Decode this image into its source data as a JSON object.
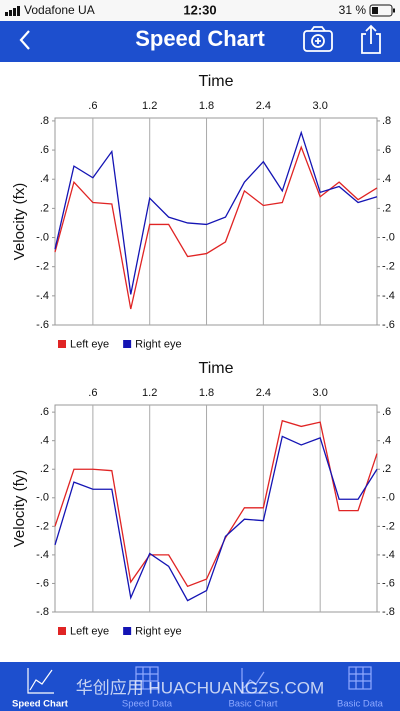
{
  "status_bar": {
    "carrier": "Vodafone UA",
    "time": "12:30",
    "battery": "31 %"
  },
  "nav": {
    "title": "Speed Chart"
  },
  "chart_data": [
    {
      "type": "line",
      "title": "Time",
      "y_label": "Velocity (fx)",
      "x": [
        0.2,
        0.4,
        0.6,
        0.8,
        1.0,
        1.2,
        1.4,
        1.6,
        1.8,
        2.0,
        2.2,
        2.4,
        2.6,
        2.8,
        3.0,
        3.2,
        3.4,
        3.6
      ],
      "series": [
        {
          "name": "Left eye",
          "color": "#e02424",
          "values": [
            -0.1,
            0.38,
            0.24,
            0.23,
            -0.49,
            0.09,
            0.09,
            -0.13,
            -0.11,
            -0.03,
            0.32,
            0.22,
            0.24,
            0.62,
            0.28,
            0.38,
            0.26,
            0.34
          ]
        },
        {
          "name": "Right eye",
          "color": "#1414b4",
          "values": [
            -0.08,
            0.49,
            0.41,
            0.59,
            -0.39,
            0.27,
            0.14,
            0.1,
            0.09,
            0.14,
            0.38,
            0.52,
            0.32,
            0.72,
            0.31,
            0.35,
            0.24,
            0.28
          ]
        }
      ],
      "xlim": [
        0.2,
        3.6
      ],
      "ylim": [
        -0.6,
        0.82
      ],
      "xticks": [
        {
          "value": 0.6,
          "label": ".6"
        },
        1.2,
        1.8,
        2.4,
        {
          "value": 3.0,
          "label": "3.0"
        }
      ],
      "yticks": [
        {
          "value": 0.8,
          "label": ".8"
        },
        {
          "value": 0.6,
          "label": ".6"
        },
        {
          "value": 0.4,
          "label": ".4"
        },
        {
          "value": 0.2,
          "label": ".2"
        },
        {
          "value": 0,
          "label": "-.0"
        },
        {
          "value": -0.2,
          "label": "-.2"
        },
        {
          "value": -0.4,
          "label": "-.4"
        },
        {
          "value": -0.6,
          "label": "-.6"
        }
      ],
      "grid": "x"
    },
    {
      "type": "line",
      "title": "Time",
      "y_label": "Velocity (fy)",
      "x": [
        0.2,
        0.4,
        0.6,
        0.8,
        1.0,
        1.2,
        1.4,
        1.6,
        1.8,
        2.0,
        2.2,
        2.4,
        2.6,
        2.8,
        3.0,
        3.2,
        3.4,
        3.6
      ],
      "series": [
        {
          "name": "Left eye",
          "color": "#e02424",
          "values": [
            -0.2,
            0.2,
            0.2,
            0.19,
            -0.59,
            -0.4,
            -0.4,
            -0.62,
            -0.57,
            -0.28,
            -0.07,
            -0.07,
            0.54,
            0.5,
            0.53,
            -0.09,
            -0.09,
            0.31
          ]
        },
        {
          "name": "Right eye",
          "color": "#1414b4",
          "values": [
            -0.33,
            0.11,
            0.06,
            0.06,
            -0.7,
            -0.39,
            -0.48,
            -0.72,
            -0.65,
            -0.27,
            -0.15,
            -0.16,
            0.43,
            0.37,
            0.42,
            -0.01,
            -0.01,
            0.2
          ]
        }
      ],
      "xlim": [
        0.2,
        3.6
      ],
      "ylim": [
        -0.8,
        0.65
      ],
      "xticks": [
        {
          "value": 0.6,
          "label": ".6"
        },
        1.2,
        1.8,
        2.4,
        {
          "value": 3.0,
          "label": "3.0"
        }
      ],
      "yticks": [
        {
          "value": 0.6,
          "label": ".6"
        },
        {
          "value": 0.4,
          "label": ".4"
        },
        {
          "value": 0.2,
          "label": ".2"
        },
        {
          "value": 0,
          "label": "-.0"
        },
        {
          "value": -0.2,
          "label": "-.2"
        },
        {
          "value": -0.4,
          "label": "-.4"
        },
        {
          "value": -0.6,
          "label": "-.6"
        },
        {
          "value": -0.8,
          "label": "-.8"
        }
      ],
      "grid": "x"
    }
  ],
  "tabs": [
    "Speed Chart",
    "Speed Data",
    "Basic Chart",
    "Basic Data"
  ],
  "watermark": "华创应用 HUACHUANGZS.COM"
}
